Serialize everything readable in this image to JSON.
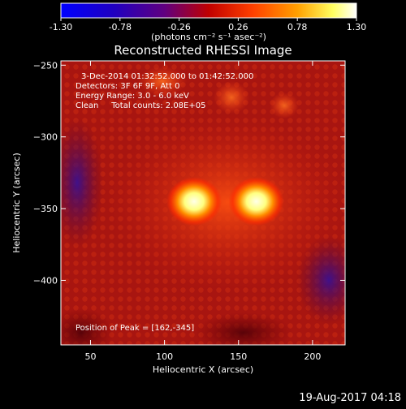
{
  "colorbar": {
    "ticks": [
      "-1.30",
      "-0.78",
      "-0.26",
      "0.26",
      "0.78",
      "1.30"
    ],
    "units_label": "(photons cm⁻² s⁻¹ asec⁻²)",
    "min": -1.3,
    "max": 1.3
  },
  "chart_data": {
    "type": "heatmap",
    "title": "Reconstructed RHESSI Image",
    "xlabel": "Heliocentric X (arcsec)",
    "ylabel": "Heliocentric Y (arcsec)",
    "xlim": [
      30,
      222
    ],
    "ylim": [
      -445,
      -247
    ],
    "xticks": [
      50,
      100,
      150,
      200
    ],
    "yticks": [
      -250,
      -300,
      -350,
      -400
    ],
    "annotations": [
      "3-Dec-2014 01:32:52.000 to 01:42:52.000",
      "Detectors: 3F 6F 9F, Att 0",
      "Energy Range: 3.0 - 6.0 keV",
      "Clean     Total counts: 2.08E+05"
    ],
    "peak_label": "Position of Peak = [162,-345]",
    "sources": [
      {
        "x": 120,
        "y": -345,
        "intensity": 1.3
      },
      {
        "x": 162,
        "y": -345,
        "intensity": 1.3
      }
    ],
    "colors": {
      "low": "#3010a0",
      "mid": "#b01810",
      "high": "#ffffe0"
    }
  },
  "footer": {
    "timestamp": "19-Aug-2017 04:18"
  }
}
